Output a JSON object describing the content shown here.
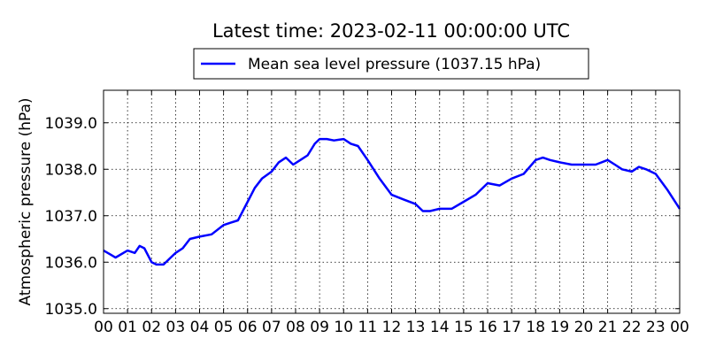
{
  "chart_data": {
    "type": "line",
    "title": "Latest time: 2023-02-11 00:00:00 UTC",
    "xlabel": "",
    "ylabel": "Atmospheric pressure (hPa)",
    "xlim": [
      0,
      24
    ],
    "ylim": [
      1034.9,
      1039.7
    ],
    "x_tick_values": [
      0,
      1,
      2,
      3,
      4,
      5,
      6,
      7,
      8,
      9,
      10,
      11,
      12,
      13,
      14,
      15,
      16,
      17,
      18,
      19,
      20,
      21,
      22,
      23,
      24
    ],
    "x_tick_labels": [
      "00",
      "01",
      "02",
      "03",
      "04",
      "05",
      "06",
      "07",
      "08",
      "09",
      "10",
      "11",
      "12",
      "13",
      "14",
      "15",
      "16",
      "17",
      "18",
      "19",
      "20",
      "21",
      "22",
      "23",
      "00"
    ],
    "y_tick_values": [
      1035.0,
      1036.0,
      1037.0,
      1038.0,
      1039.0
    ],
    "y_tick_labels": [
      "1035.0",
      "1036.0",
      "1037.0",
      "1038.0",
      "1039.0"
    ],
    "grid": true,
    "legend_position": "top-center",
    "series": [
      {
        "name": "Mean sea level pressure (1037.15 hPa)",
        "color": "#0000ff",
        "x": [
          0,
          0.5,
          1.0,
          1.3,
          1.5,
          1.7,
          2.0,
          2.2,
          2.5,
          2.8,
          3.0,
          3.3,
          3.6,
          4.0,
          4.5,
          5.0,
          5.3,
          5.6,
          6.0,
          6.3,
          6.6,
          7.0,
          7.3,
          7.6,
          7.9,
          8.2,
          8.5,
          8.8,
          9.0,
          9.3,
          9.6,
          10.0,
          10.3,
          10.6,
          11.0,
          11.5,
          12.0,
          12.5,
          13.0,
          13.3,
          13.6,
          14.0,
          14.5,
          15.0,
          15.5,
          16.0,
          16.5,
          17.0,
          17.5,
          18.0,
          18.3,
          18.6,
          19.0,
          19.5,
          20.0,
          20.5,
          21.0,
          21.3,
          21.6,
          22.0,
          22.3,
          22.6,
          23.0,
          23.5,
          24.0
        ],
        "values": [
          1036.25,
          1036.1,
          1036.25,
          1036.2,
          1036.35,
          1036.3,
          1036.0,
          1035.95,
          1035.95,
          1036.1,
          1036.2,
          1036.3,
          1036.5,
          1036.55,
          1036.6,
          1036.8,
          1036.85,
          1036.9,
          1037.3,
          1037.6,
          1037.8,
          1037.95,
          1038.15,
          1038.25,
          1038.1,
          1038.2,
          1038.3,
          1038.55,
          1038.65,
          1038.65,
          1038.62,
          1038.65,
          1038.55,
          1038.5,
          1038.2,
          1037.8,
          1037.45,
          1037.35,
          1037.25,
          1037.1,
          1037.1,
          1037.15,
          1037.15,
          1037.3,
          1037.45,
          1037.7,
          1037.65,
          1037.8,
          1037.9,
          1038.2,
          1038.25,
          1038.2,
          1038.15,
          1038.1,
          1038.1,
          1038.1,
          1038.2,
          1038.1,
          1038.0,
          1037.95,
          1038.05,
          1038.0,
          1037.9,
          1037.55,
          1037.15
        ]
      }
    ]
  }
}
